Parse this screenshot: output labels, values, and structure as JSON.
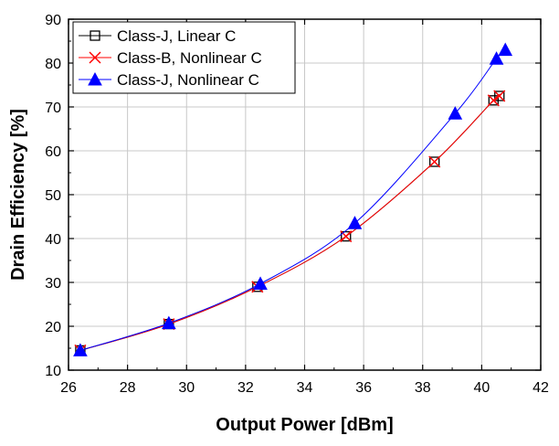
{
  "chart_data": {
    "type": "line",
    "title": "",
    "xlabel": "Output Power [dBm]",
    "ylabel": "Drain Efficiency [%]",
    "xlim": [
      26,
      42
    ],
    "ylim": [
      10,
      90
    ],
    "xticks": [
      26,
      28,
      30,
      32,
      34,
      36,
      38,
      40,
      42
    ],
    "yticks": [
      10,
      20,
      30,
      40,
      50,
      60,
      70,
      80,
      90
    ],
    "grid": true,
    "legend_position": "top-left",
    "series": [
      {
        "name": "Class-J, Linear C",
        "color": "#000000",
        "marker": "open-square",
        "x": [
          26.4,
          29.4,
          32.4,
          35.4,
          38.4,
          40.4,
          40.6
        ],
        "y": [
          14.5,
          20.5,
          29.0,
          40.5,
          57.5,
          71.5,
          72.5
        ]
      },
      {
        "name": "Class-B, Nonlinear C",
        "color": "#ff0000",
        "marker": "x",
        "x": [
          26.4,
          29.4,
          32.4,
          35.4,
          38.4,
          40.4,
          40.6
        ],
        "y": [
          14.5,
          20.5,
          29.0,
          40.5,
          57.5,
          71.5,
          72.5
        ]
      },
      {
        "name": "Class-J, Nonlinear C",
        "color": "#0000ff",
        "marker": "filled-triangle",
        "x": [
          26.4,
          29.4,
          32.5,
          35.7,
          39.1,
          40.5,
          40.8
        ],
        "y": [
          14.5,
          20.7,
          29.7,
          43.5,
          68.5,
          81.0,
          83.0
        ]
      }
    ]
  }
}
